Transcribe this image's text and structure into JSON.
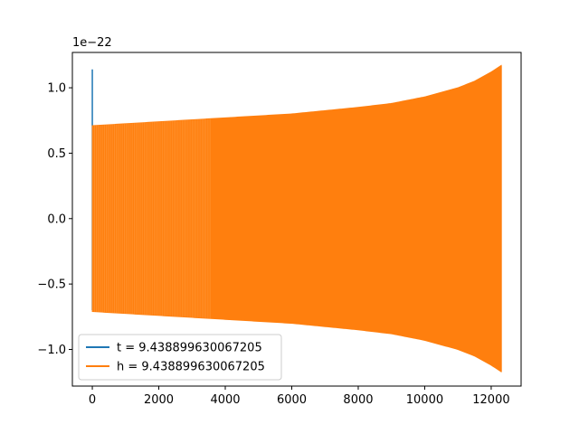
{
  "chart_data": {
    "type": "line",
    "title": "",
    "xlabel": "",
    "ylabel": "",
    "offset_label": "1e−22",
    "xlim": [
      -600,
      12900
    ],
    "ylim": [
      -1.28,
      1.27
    ],
    "x_ticks": [
      0,
      2000,
      4000,
      6000,
      8000,
      10000,
      12000
    ],
    "x_tick_labels": [
      "0",
      "2000",
      "4000",
      "6000",
      "8000",
      "10000",
      "12000"
    ],
    "y_ticks": [
      -1.0,
      -0.5,
      0.0,
      0.5,
      1.0
    ],
    "y_tick_labels": [
      "−1.0",
      "−0.5",
      "0.0",
      "0.5",
      "1.0"
    ],
    "grid": false,
    "legend_position": "lower-left",
    "series": [
      {
        "name": "t = 9.438899630067205",
        "color": "#1f77b4",
        "x": [
          0,
          0,
          0,
          0,
          0
        ],
        "y": [
          -0.55,
          0.4,
          1.14,
          0.2,
          -0.7
        ]
      },
      {
        "name": "h = 9.438899630067205",
        "color": "#ff7f0e",
        "envelope_x": [
          0,
          2000,
          4000,
          6000,
          8000,
          9000,
          10000,
          11000,
          11500,
          12000,
          12300
        ],
        "envelope_amplitude": [
          0.71,
          0.74,
          0.77,
          0.8,
          0.85,
          0.88,
          0.93,
          1.0,
          1.05,
          1.12,
          1.17
        ]
      }
    ]
  }
}
